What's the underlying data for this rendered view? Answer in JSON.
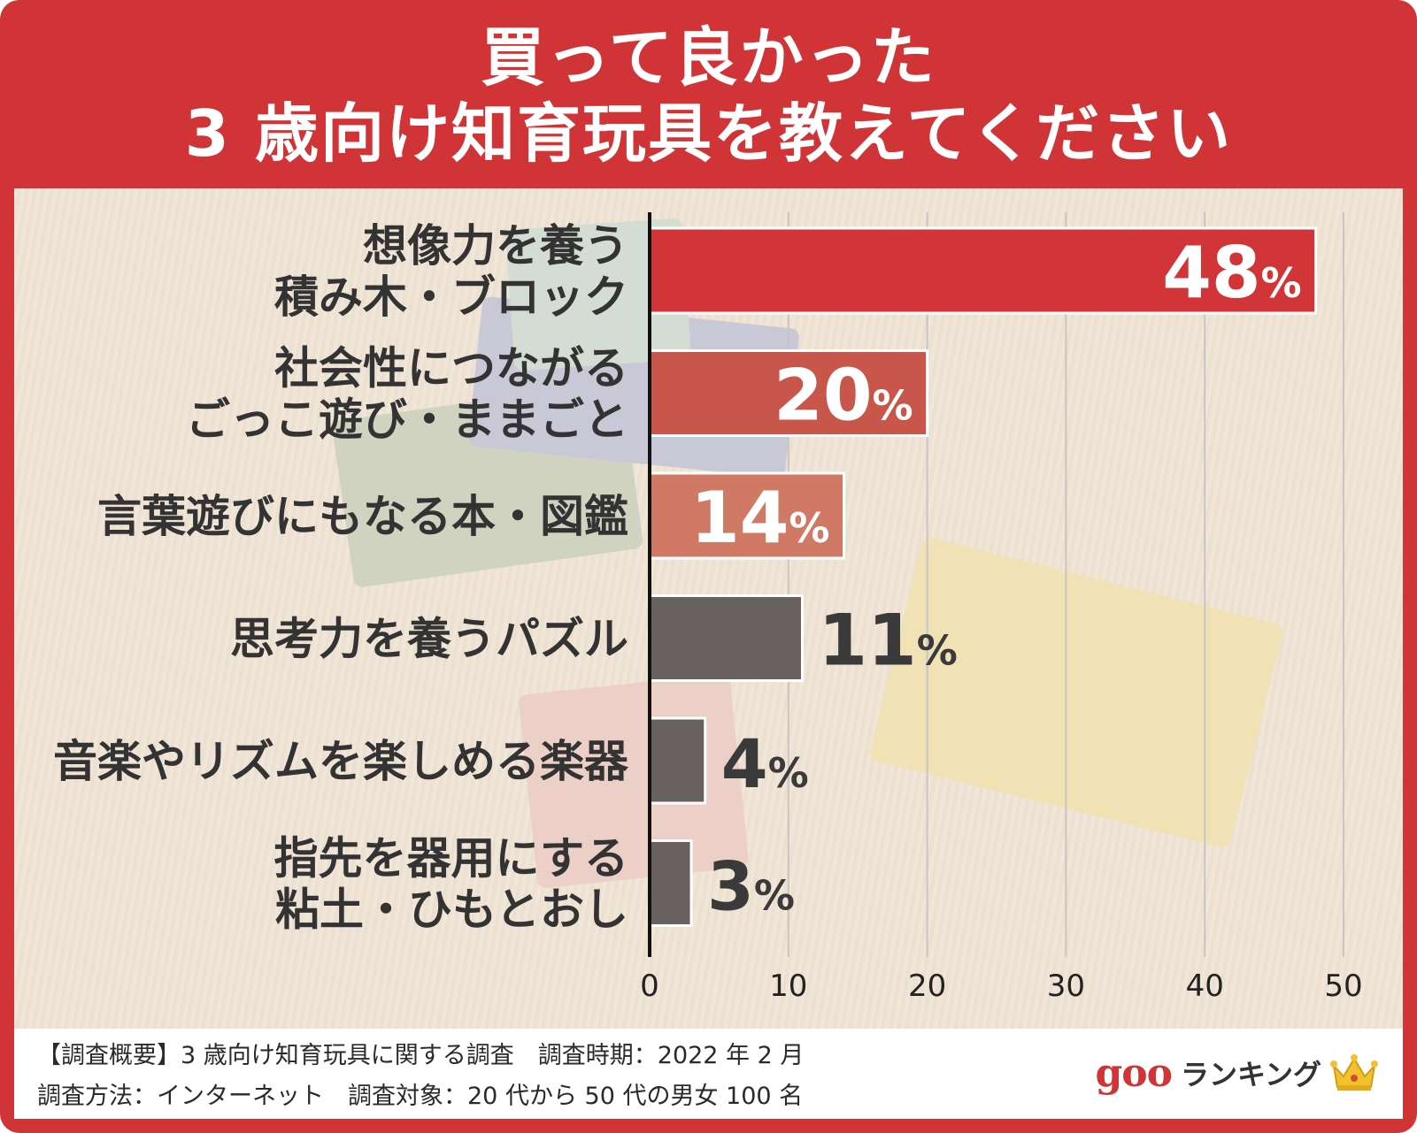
{
  "title": {
    "line1": "買って良かった",
    "line2": "3 歳向け知育玩具を教えてください"
  },
  "chart_data": {
    "type": "bar",
    "orientation": "horizontal",
    "categories": [
      [
        "想像力を養う",
        "積み木・ブロック"
      ],
      [
        "社会性につながる",
        "ごっこ遊び・ままごと"
      ],
      [
        "言葉遊びにもなる本・図鑑"
      ],
      [
        "思考力を養うパズル"
      ],
      [
        "音楽やリズムを楽しめる楽器"
      ],
      [
        "指先を器用にする",
        "粘土・ひもとおし"
      ]
    ],
    "values": [
      48,
      20,
      14,
      11,
      4,
      3
    ],
    "value_suffix": "%",
    "bar_colors": [
      "#d13538",
      "#c9564b",
      "#d07a66",
      "#67615f",
      "#67615f",
      "#67615f"
    ],
    "x_ticks": [
      "0",
      "10",
      "20",
      "30",
      "40",
      "50"
    ],
    "xlim": [
      0,
      50
    ],
    "grid": true
  },
  "footer": {
    "line1": "【調査概要】3 歳向け知育玩具に関する調査　調査時期：2022 年 2 月",
    "line2": "調査方法：インターネット　調査対象：20 代から 50 代の男女 100 名"
  },
  "brand": {
    "logo": "goo",
    "name": "ランキング",
    "icon": "crown-icon"
  }
}
